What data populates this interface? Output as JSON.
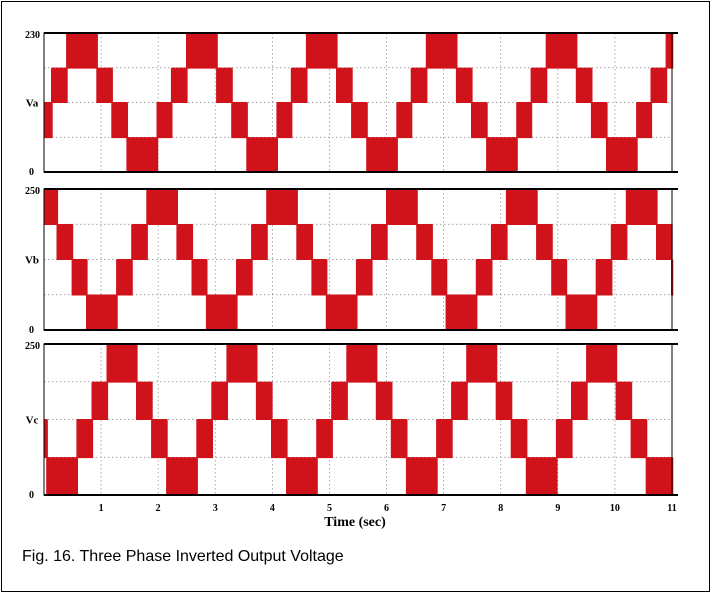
{
  "caption": "Fig. 16. Three Phase Inverted Output Voltage",
  "colors": {
    "signal": "#d0121b",
    "grid": "#888888",
    "axis": "#000000"
  },
  "chart_data": [
    {
      "type": "line",
      "ylabel": "Va",
      "y_ticks": [
        "0",
        "230"
      ],
      "ylim": [
        0,
        230
      ],
      "xlim": [
        0,
        11
      ],
      "grid": true,
      "series": [
        {
          "levels_by_sector": [
            115,
            172,
            230,
            172,
            115,
            57,
            0,
            57
          ],
          "period_sec": 2.1,
          "phase_offset_sec": 0.0
        }
      ]
    },
    {
      "type": "line",
      "ylabel": "Vb",
      "y_ticks": [
        "0",
        "250"
      ],
      "ylim": [
        0,
        250
      ],
      "xlim": [
        0,
        11
      ],
      "grid": true,
      "series": [
        {
          "levels_by_sector": [
            125,
            187,
            250,
            187,
            125,
            62,
            0,
            62
          ],
          "period_sec": 2.1,
          "phase_offset_sec": 0.7
        }
      ]
    },
    {
      "type": "line",
      "ylabel": "Vc",
      "y_ticks": [
        "0",
        "250"
      ],
      "ylim": [
        0,
        250
      ],
      "xlim": [
        0,
        11
      ],
      "grid": true,
      "xlabel": "Time (sec)",
      "x_ticks": [
        "1",
        "2",
        "3",
        "4",
        "5",
        "6",
        "7",
        "8",
        "9",
        "10",
        "11"
      ],
      "series": [
        {
          "levels_by_sector": [
            125,
            187,
            250,
            187,
            125,
            62,
            0,
            62
          ],
          "period_sec": 2.1,
          "phase_offset_sec": 1.4
        }
      ]
    }
  ]
}
